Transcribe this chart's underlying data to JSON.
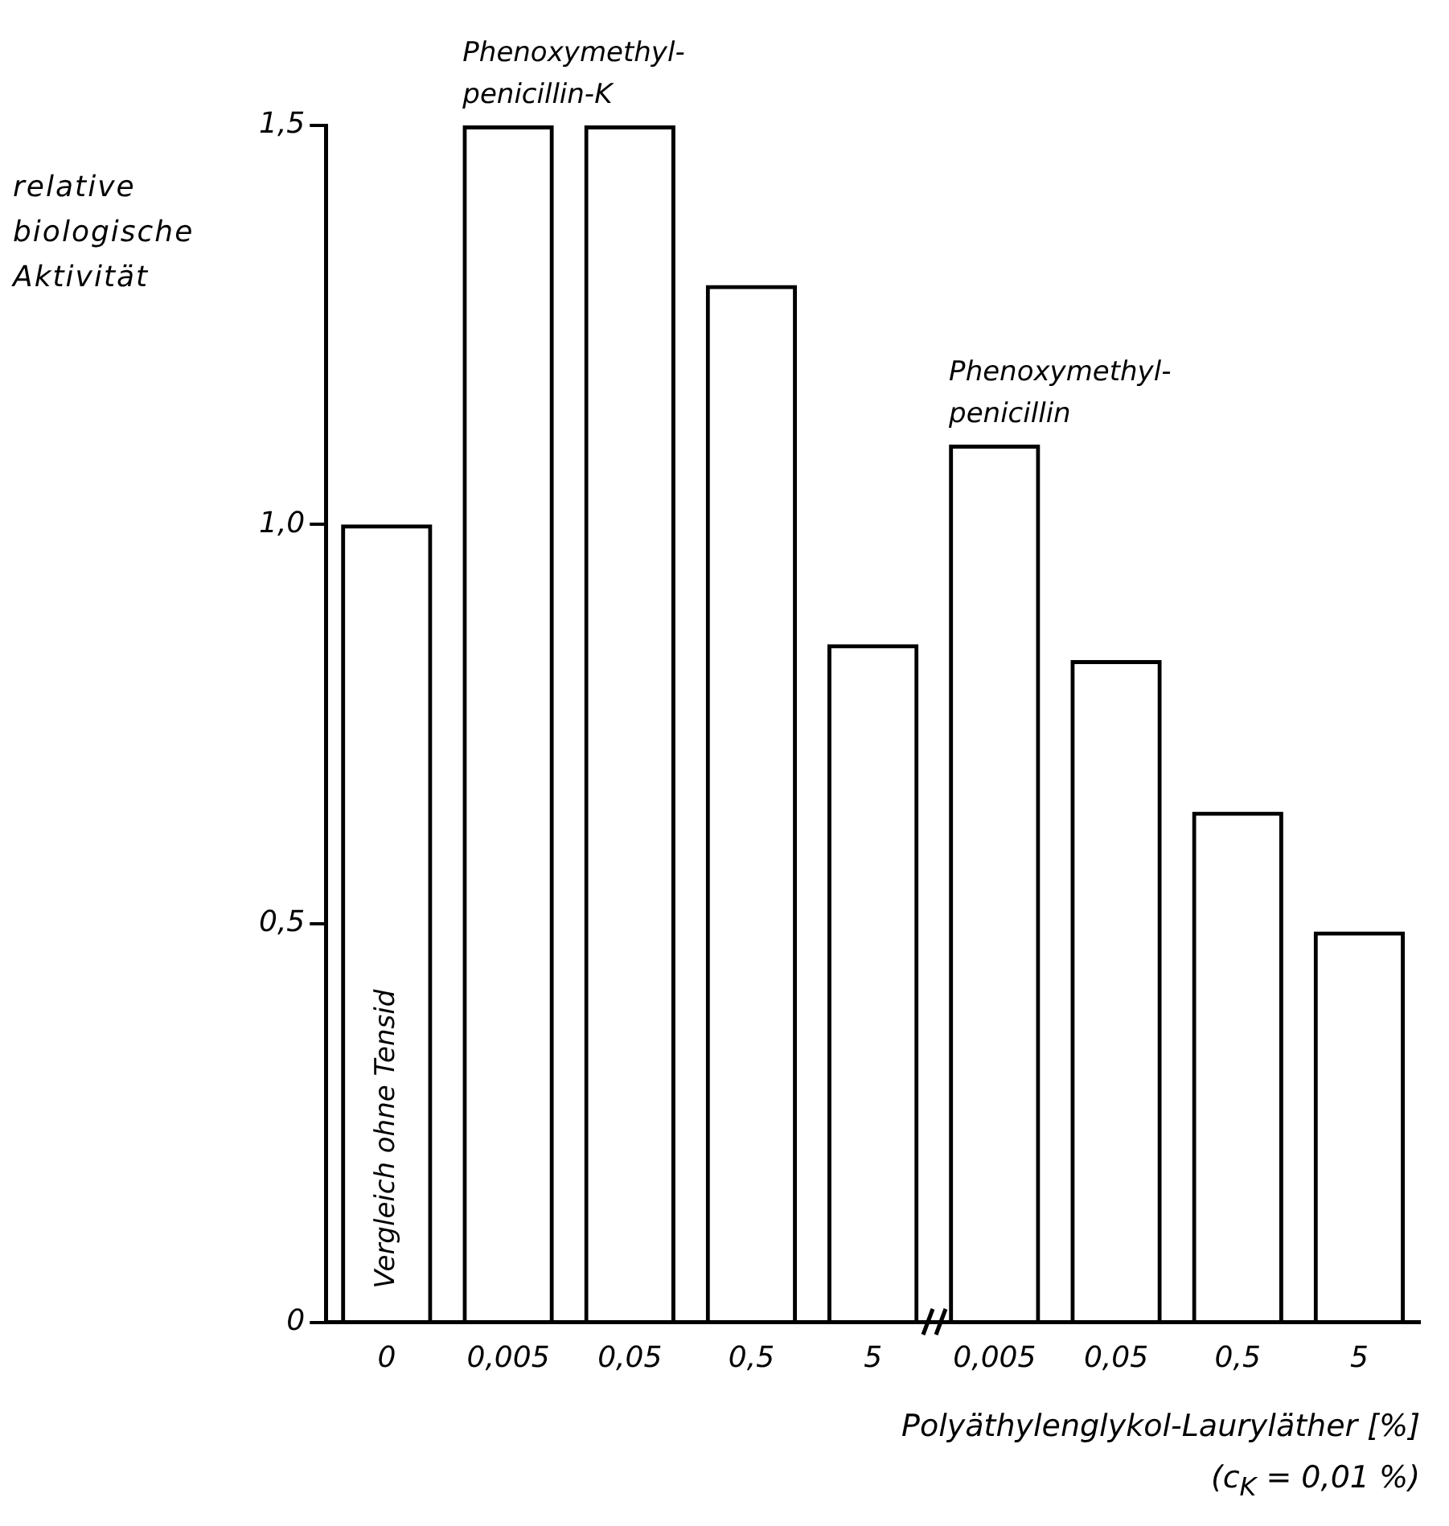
{
  "chart_data": {
    "type": "bar",
    "ylabel": "relative biologische Aktivität",
    "xlabel": "Polyäthylenglykol-Lauryläther [%]",
    "annotations": [
      "(c$_{K}$ = 0,01 %)"
    ],
    "categories": [
      "0",
      "0,005",
      "0,05",
      "0,5",
      "5",
      "0,005",
      "0,05",
      "0,5",
      "5"
    ],
    "series": [
      {
        "name": "Vergleich ohne Tensid",
        "color": "#000000",
        "values": [
          1.0,
          null,
          null,
          null,
          null,
          null,
          null,
          null,
          null
        ]
      },
      {
        "name": "Phenoxymethyl-penicillin-K",
        "color": "#000000",
        "values": [
          null,
          1.5,
          1.5,
          1.3,
          0.85,
          null,
          null,
          null,
          null
        ]
      },
      {
        "name": "Phenoxymethyl-penicillin",
        "color": "#000000",
        "values": [
          null,
          null,
          null,
          null,
          null,
          1.1,
          0.83,
          0.64,
          0.49
        ]
      }
    ],
    "ylim": [
      0,
      1.5
    ],
    "yticks": [
      0,
      {
        "value": 0.5,
        "label": "0,5"
      },
      {
        "value": 1.0,
        "label": "1,0"
      },
      {
        "value": 1.5,
        "label": "1,5"
      }
    ],
    "grid": false,
    "legend": false
  }
}
